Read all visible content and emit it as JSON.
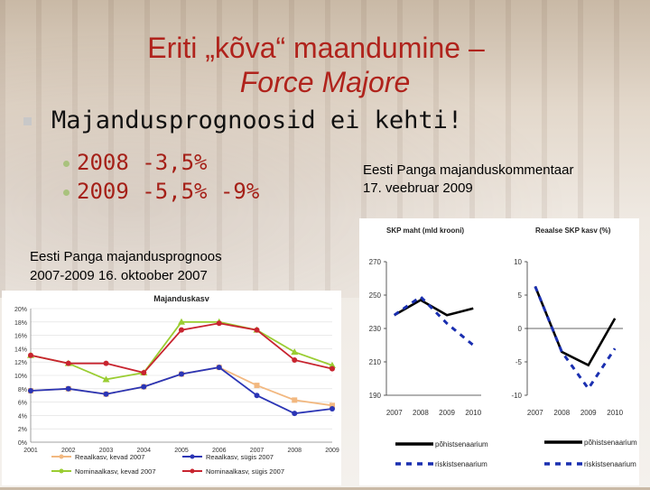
{
  "slide": {
    "title_line1": "Eriti „kõva“ maandumine –",
    "title_line2": "Force Majore",
    "bullet": "Majandusprognoosid ei kehti!",
    "sub1": "2008  -3,5%",
    "sub2": "2009  -5,5%  -9%",
    "ebk_line1": "Eesti Panga majanduskommentaar",
    "ebk_line2": "17. veebruar 2009",
    "note_line1": "Eesti Panga majandusprognoos",
    "note_line2": "2007-2009 16. oktoober 2007"
  },
  "chart_data": [
    {
      "type": "line",
      "title": "Majanduskasv",
      "x": [
        "2001",
        "2002",
        "2003",
        "2004",
        "2005",
        "2006",
        "2007",
        "2008",
        "2009"
      ],
      "ylim": [
        0,
        20
      ],
      "y_ticks": [
        "0%",
        "2%",
        "4%",
        "6%",
        "8%",
        "10%",
        "12%",
        "14%",
        "16%",
        "18%",
        "20%"
      ],
      "series": [
        {
          "name": "Reaalkasv, kevad 2007",
          "color": "#f2b880",
          "values": [
            7.7,
            8.0,
            7.2,
            8.3,
            10.2,
            11.2,
            8.5,
            6.3,
            5.5
          ]
        },
        {
          "name": "Nominaalkasv, kevad 2007",
          "color": "#9acd32",
          "values": [
            13.0,
            11.8,
            9.4,
            10.4,
            18.0,
            18.0,
            16.8,
            13.5,
            11.5
          ]
        },
        {
          "name": "Reaalkasv, sügis 2007",
          "color": "#2b35b5",
          "values": [
            7.7,
            8.0,
            7.2,
            8.3,
            10.2,
            11.2,
            7.0,
            4.3,
            5.0
          ]
        },
        {
          "name": "Nominaalkasv, sügis 2007",
          "color": "#c8242f",
          "values": [
            13.0,
            11.8,
            11.8,
            10.4,
            16.8,
            17.8,
            16.8,
            12.3,
            11.0
          ]
        }
      ]
    },
    {
      "type": "line",
      "title": "SKP maht (mld krooni)",
      "x": [
        "2007",
        "2008",
        "2009",
        "2010"
      ],
      "ylim": [
        190,
        270
      ],
      "y_ticks": [
        "190",
        "210",
        "230",
        "250",
        "270"
      ],
      "series": [
        {
          "name": "põhistsenaarium",
          "color": "#000000",
          "values": [
            238,
            247,
            238,
            242
          ]
        },
        {
          "name": "riskistsenaarium",
          "color": "#1a2fb0",
          "values": [
            238,
            249,
            233,
            220
          ]
        }
      ]
    },
    {
      "type": "line",
      "title": "Reaalse SKP kasv (%)",
      "x": [
        "2007",
        "2008",
        "2009",
        "2010"
      ],
      "ylim": [
        -10,
        10
      ],
      "y_ticks": [
        "-10",
        "-5",
        "0",
        "5",
        "10"
      ],
      "series": [
        {
          "name": "põhistsenaarium",
          "color": "#000000",
          "values": [
            6.3,
            -3.5,
            -5.5,
            1.5
          ]
        },
        {
          "name": "riskistsenaarium",
          "color": "#1a2fb0",
          "values": [
            6.3,
            -3.5,
            -9.0,
            -3.0
          ]
        }
      ]
    }
  ]
}
